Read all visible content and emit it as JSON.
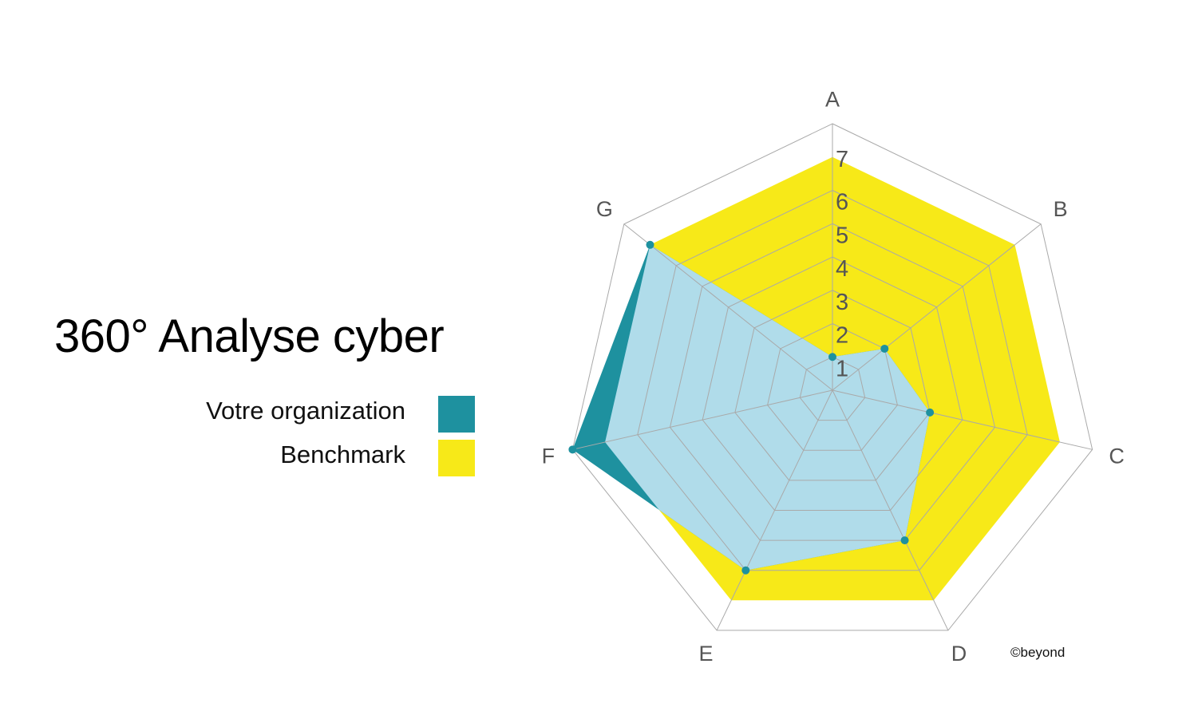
{
  "chart_data": {
    "type": "radar",
    "title": "360° Analyse cyber",
    "categories": [
      "A",
      "B",
      "C",
      "D",
      "E",
      "F",
      "G"
    ],
    "tick_labels": [
      "1",
      "2",
      "3",
      "4",
      "5",
      "6",
      "7"
    ],
    "range": [
      0,
      8
    ],
    "grid": true,
    "legend_placement": "left",
    "series": [
      {
        "name": "Votre organization",
        "values": [
          1,
          2,
          3,
          5,
          6,
          8,
          7
        ],
        "color": "#1e919f"
      },
      {
        "name": "Benchmark",
        "values": [
          7,
          7,
          7,
          7,
          7,
          7,
          7
        ],
        "color": "#f7e918"
      }
    ],
    "overlap_color": "#b0dcea",
    "credit": "©beyond"
  }
}
